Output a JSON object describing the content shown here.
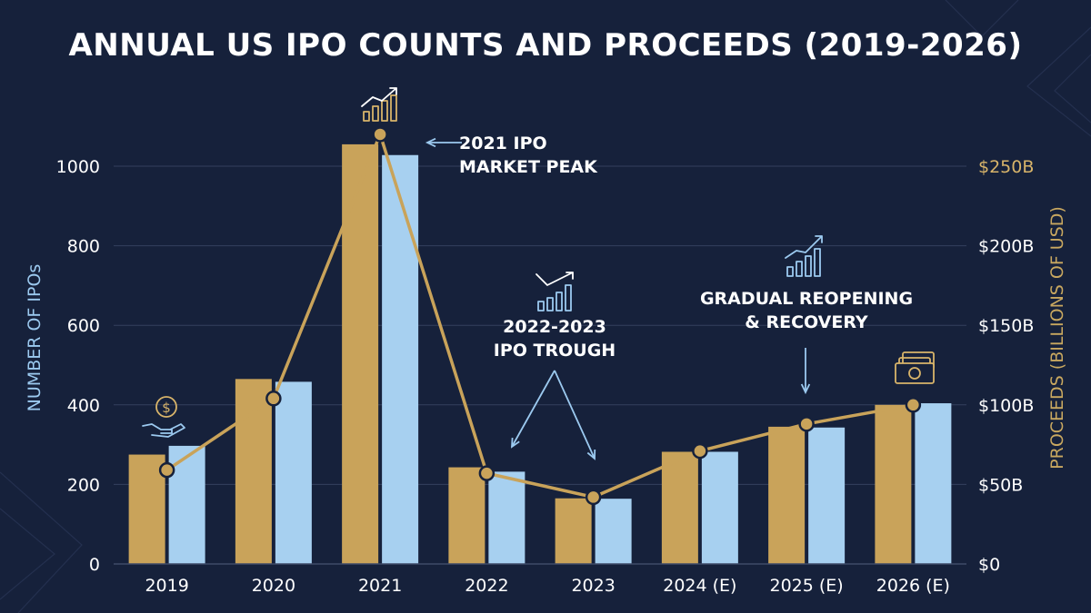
{
  "title": "ANNUAL US IPO COUNTS AND PROCEEDS (2019-2026)",
  "colors": {
    "background": "#16213b",
    "count_bar": "#a7d0f0",
    "proceeds_bar": "#c9a35a",
    "proceeds_line": "#c9a35a",
    "grid": "#34405e",
    "text": "#ffffff"
  },
  "icons": [
    "hand-dollar-icon",
    "rising-bar-chart-icon",
    "dip-recovery-chart-icon",
    "rising-bar-chart-icon",
    "cash-stack-icon"
  ],
  "annotations": {
    "peak": "2021 IPO\nMARKET PEAK",
    "trough": "2022-2023\nIPO TROUGH",
    "recovery": "GRADUAL REOPENING\n& RECOVERY"
  },
  "chart_data": {
    "type": "bar",
    "categories": [
      "2019",
      "2020",
      "2021",
      "2022",
      "2023",
      "2024 (E)",
      "2025 (E)",
      "2026 (E)"
    ],
    "series": [
      {
        "values": [
          275,
          465,
          1055,
          243,
          165,
          282,
          345,
          400
        ],
        "axis": "left",
        "kind": "bar"
      },
      {
        "values": [
          297,
          458,
          1028,
          232,
          164,
          282,
          343,
          404
        ],
        "axis": "left",
        "kind": "bar"
      },
      {
        "values": [
          59,
          104,
          270,
          57,
          42,
          71,
          88,
          100
        ],
        "axis": "right",
        "kind": "line"
      }
    ],
    "ylabel": "NUMBER OF IPOs",
    "ylabel_right": "PROCEEDS (BILLIONS OF USD)",
    "ylim": [
      0,
      1000
    ],
    "yticks": [
      "0",
      "200",
      "400",
      "600",
      "800",
      "1000"
    ],
    "ylim_right": [
      0,
      250
    ],
    "yticks_right": [
      "$0",
      "$50B",
      "$100B",
      "$150B",
      "$200B",
      "$250B"
    ],
    "grid": true,
    "legend": "none"
  }
}
